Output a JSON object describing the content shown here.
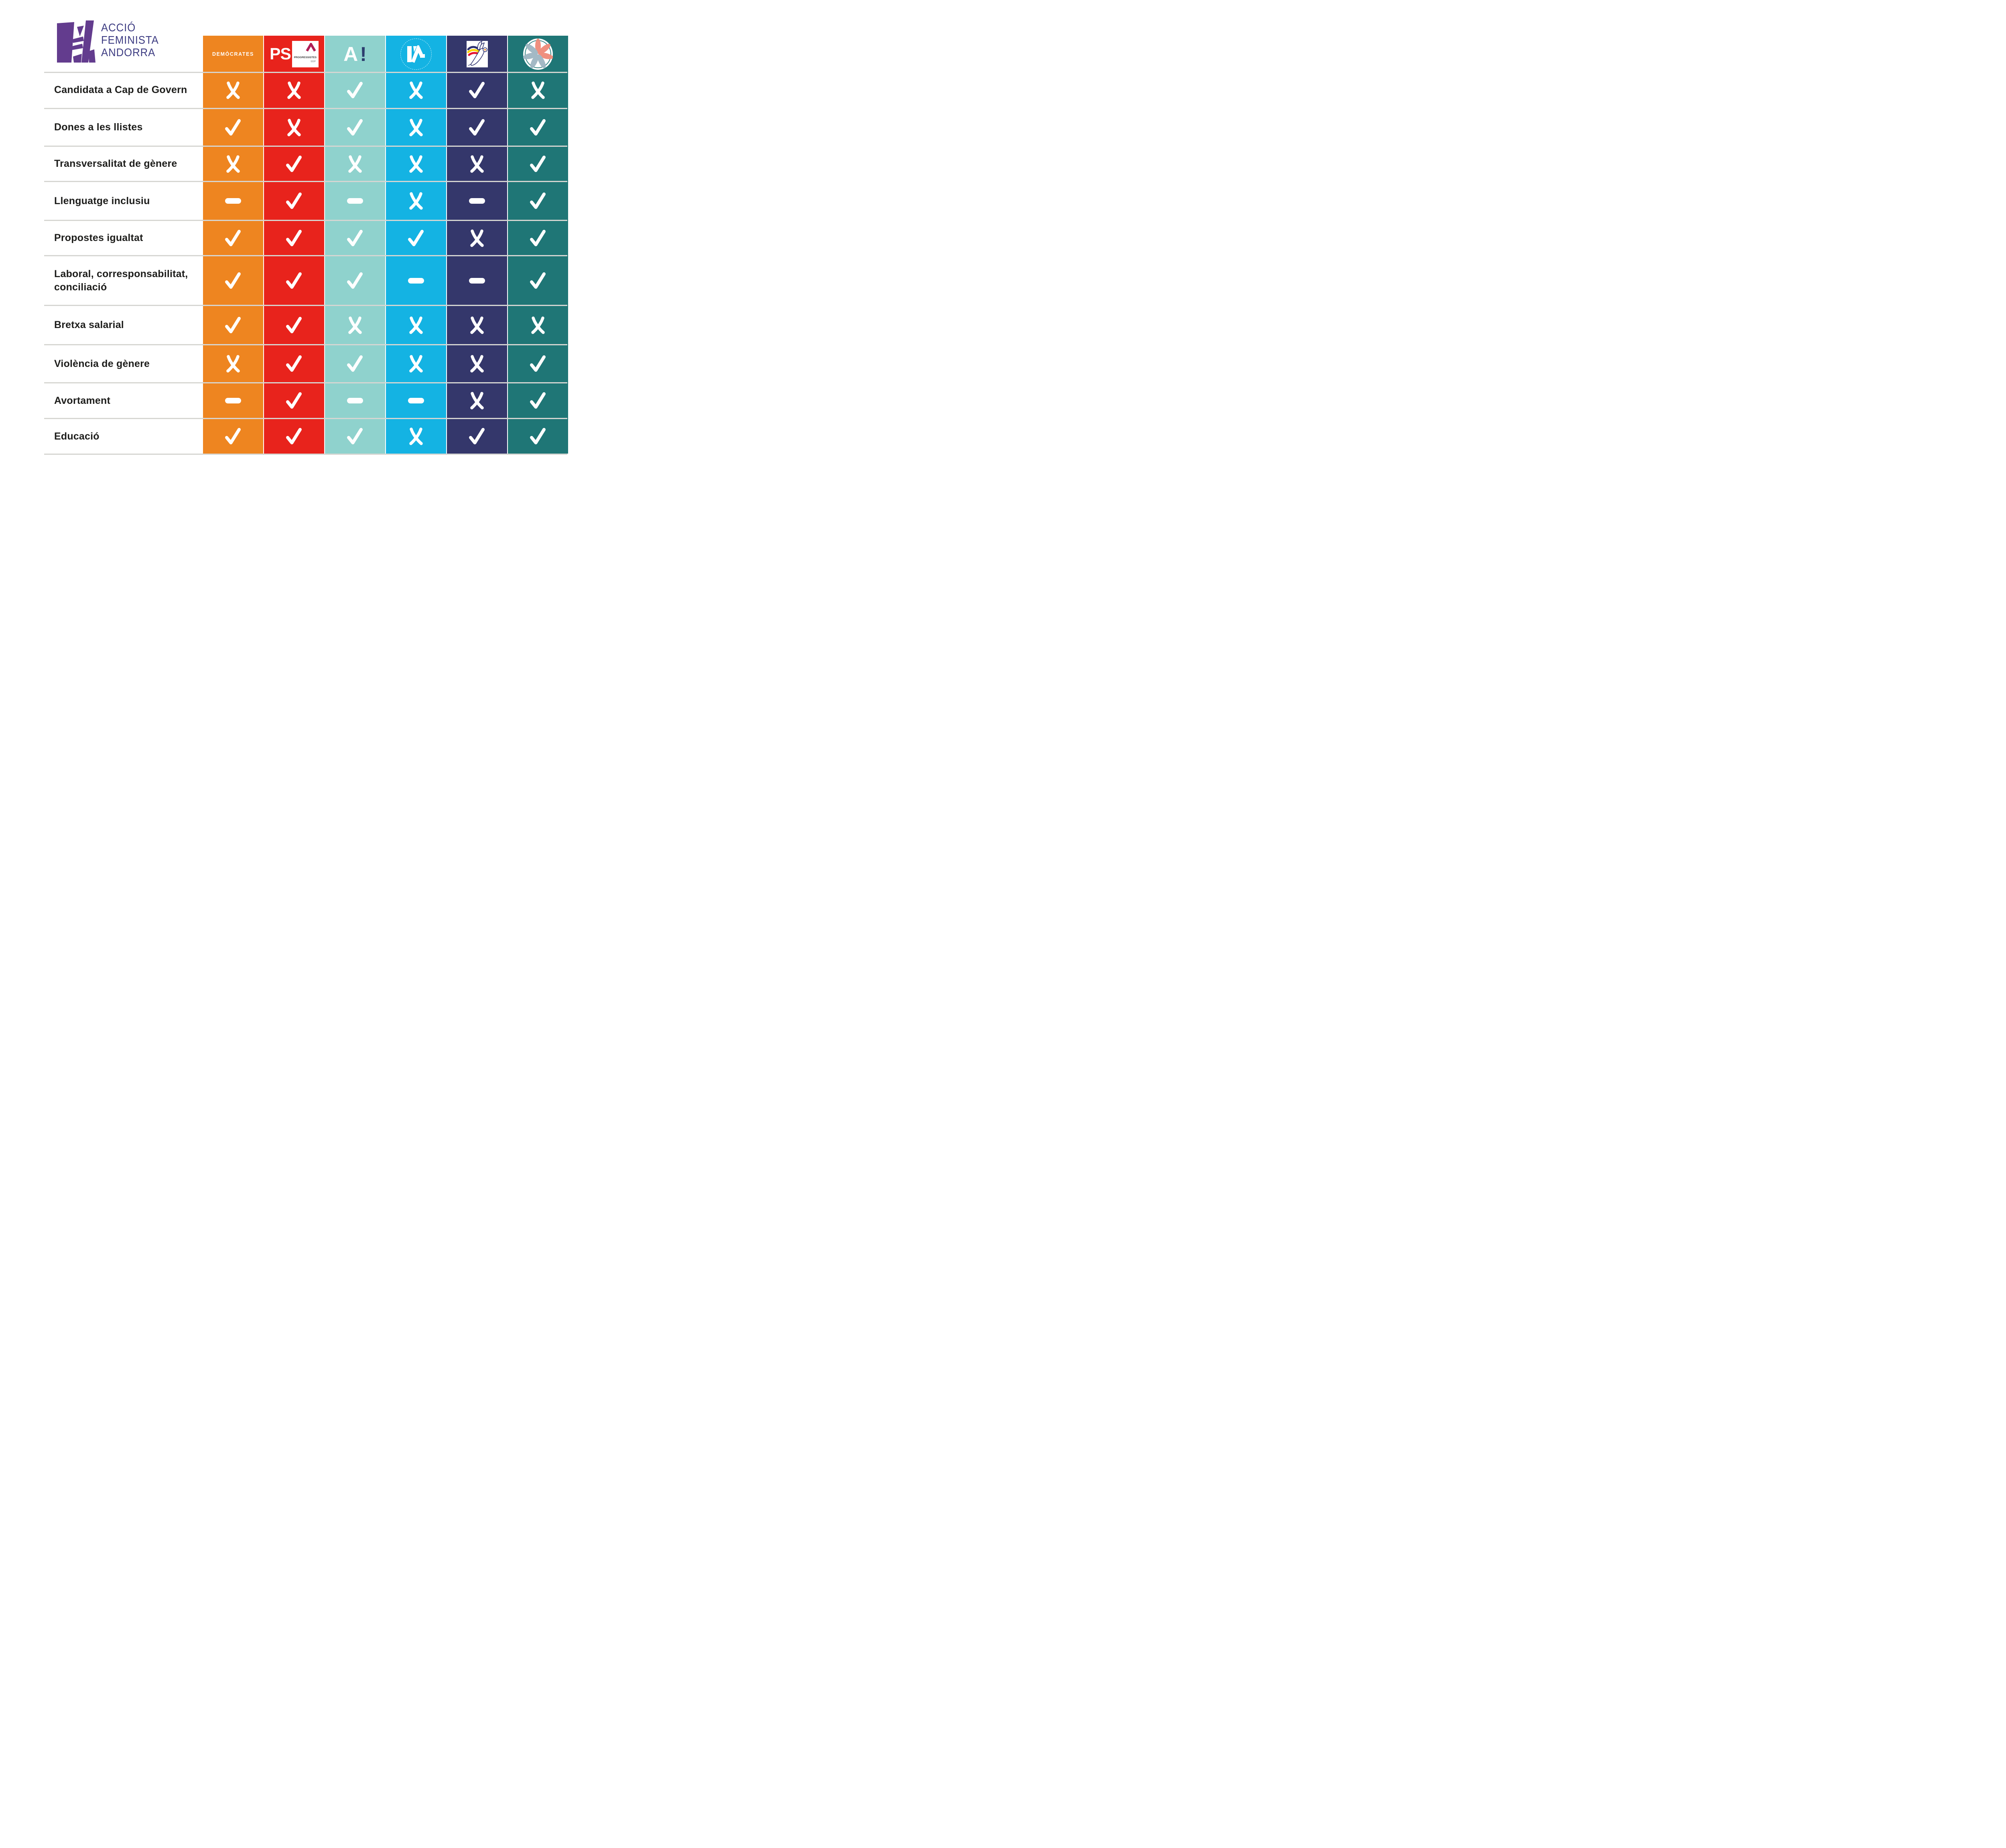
{
  "brand": {
    "line1": "ACCIÓ",
    "line2": "FEMINISTA",
    "line3": "ANDORRA",
    "monogram_color": "#633c8e",
    "text_color": "#3d3c82"
  },
  "parties": [
    {
      "id": "democrates",
      "header_text": "DEMÒCRATES",
      "color": "#ee8520",
      "logo": "text"
    },
    {
      "id": "ps-progressistes",
      "header_text": "PS",
      "color": "#e8231c",
      "logo": "ps",
      "box": {
        "line1": "PROGRESSISTES",
        "line2": "SDP",
        "chevron_color": "#b01e56"
      }
    },
    {
      "id": "a-exclamacio",
      "header_text": "A!",
      "color": "#8fd2cd",
      "logo": "exclaim",
      "accent_color": "#2c3e6e"
    },
    {
      "id": "l-a",
      "header_text": "L'A",
      "color": "#14b3e3",
      "logo": "la"
    },
    {
      "id": "dove-party",
      "header_text": "",
      "color": "#34376b",
      "logo": "dove"
    },
    {
      "id": "flower-party",
      "header_text": "",
      "color": "#1f7676",
      "logo": "flower"
    }
  ],
  "rows": [
    {
      "label": "Candidata a Cap de Govern",
      "marks": [
        "cross",
        "cross",
        "check",
        "cross",
        "check",
        "cross"
      ]
    },
    {
      "label": "Dones a les llistes",
      "marks": [
        "check",
        "cross",
        "check",
        "cross",
        "check",
        "check"
      ]
    },
    {
      "label": "Transversalitat de gènere",
      "marks": [
        "cross",
        "check",
        "cross",
        "cross",
        "cross",
        "check"
      ]
    },
    {
      "label": "Llenguatge inclusiu",
      "marks": [
        "dash",
        "check",
        "dash",
        "cross",
        "dash",
        "check"
      ]
    },
    {
      "label": "Propostes igualtat",
      "marks": [
        "check",
        "check",
        "check",
        "check",
        "cross",
        "check"
      ]
    },
    {
      "label": "Laboral, corresponsabilitat,\nconciliació",
      "marks": [
        "check",
        "check",
        "check",
        "dash",
        "dash",
        "check"
      ]
    },
    {
      "label": "Bretxa salarial",
      "marks": [
        "check",
        "check",
        "cross",
        "cross",
        "cross",
        "cross"
      ]
    },
    {
      "label": "Violència de gènere",
      "marks": [
        "cross",
        "check",
        "check",
        "cross",
        "cross",
        "check"
      ]
    },
    {
      "label": "Avortament",
      "marks": [
        "dash",
        "check",
        "dash",
        "dash",
        "cross",
        "check"
      ]
    },
    {
      "label": "Educació",
      "marks": [
        "check",
        "check",
        "check",
        "cross",
        "check",
        "check"
      ]
    }
  ],
  "mark_colors": {
    "mark": "#ffffff"
  },
  "line_color": "#d6d6d2",
  "chart_data": {
    "type": "table",
    "columns": [
      "DEMÒCRATES",
      "PS PROGRESSISTES SDP",
      "A!",
      "L'A",
      "dove-logo-party",
      "flower-logo-party"
    ],
    "row_labels": [
      "Candidata a Cap de Govern",
      "Dones a les llistes",
      "Transversalitat de gènere",
      "Llenguatge inclusiu",
      "Propostes igualtat",
      "Laboral, corresponsabilitat, conciliació",
      "Bretxa salarial",
      "Violència de gènere",
      "Avortament",
      "Educació"
    ],
    "values": [
      [
        "no",
        "no",
        "yes",
        "no",
        "yes",
        "no"
      ],
      [
        "yes",
        "no",
        "yes",
        "no",
        "yes",
        "yes"
      ],
      [
        "no",
        "yes",
        "no",
        "no",
        "no",
        "yes"
      ],
      [
        "partial",
        "yes",
        "partial",
        "no",
        "partial",
        "yes"
      ],
      [
        "yes",
        "yes",
        "yes",
        "yes",
        "no",
        "yes"
      ],
      [
        "yes",
        "yes",
        "yes",
        "partial",
        "partial",
        "yes"
      ],
      [
        "yes",
        "yes",
        "no",
        "no",
        "no",
        "no"
      ],
      [
        "no",
        "yes",
        "yes",
        "no",
        "no",
        "yes"
      ],
      [
        "partial",
        "yes",
        "partial",
        "partial",
        "no",
        "yes"
      ],
      [
        "yes",
        "yes",
        "yes",
        "no",
        "yes",
        "yes"
      ]
    ],
    "mark_legend": {
      "yes": "white check mark",
      "no": "white cross mark",
      "partial": "white dash"
    },
    "column_colors": [
      "#ee8520",
      "#e8231c",
      "#8fd2cd",
      "#14b3e3",
      "#34376b",
      "#1f7676"
    ],
    "grid": "light gray horizontal separators",
    "legend_position": "none"
  }
}
